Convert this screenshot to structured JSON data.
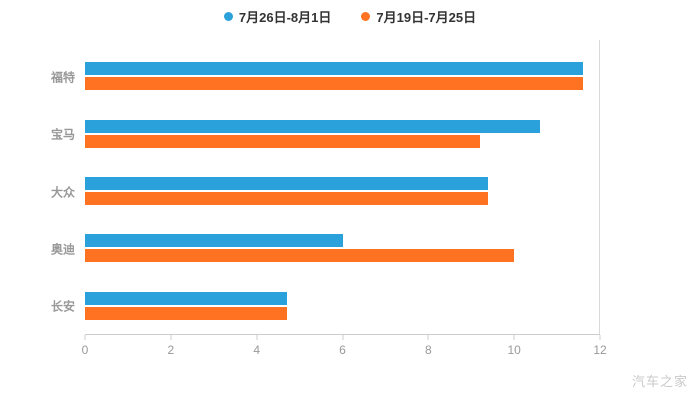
{
  "watermark": "汽车之家",
  "chart_data": {
    "type": "bar",
    "orientation": "horizontal",
    "title": "",
    "xlabel": "",
    "ylabel": "",
    "categories": [
      "福特",
      "宝马",
      "大众",
      "奥迪",
      "长安"
    ],
    "series": [
      {
        "name": "7月26日-8月1日",
        "color": "#2BA1DB",
        "values": [
          11.6,
          10.6,
          9.4,
          6.0,
          4.7
        ]
      },
      {
        "name": "7月19日-7月25日",
        "color": "#FF7221",
        "values": [
          11.6,
          9.2,
          9.4,
          10.0,
          4.7
        ]
      }
    ],
    "xlim": [
      0,
      12
    ],
    "xticks": [
      0,
      2,
      4,
      6,
      8,
      10,
      12
    ],
    "grid": "vertical line at x=12 only",
    "legend_position": "top-center",
    "axis_line_color": "#cccccc",
    "label_color": "#999999"
  }
}
